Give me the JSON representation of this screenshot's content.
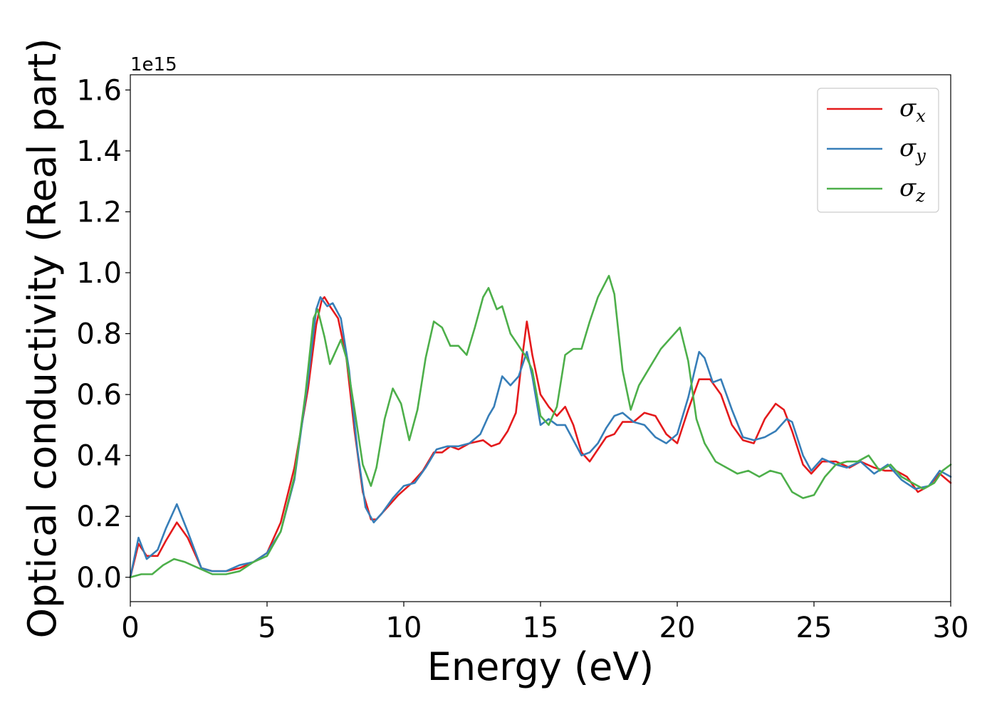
{
  "chart_data": {
    "type": "line",
    "xlabel": "Energy (eV)",
    "ylabel": "Optical conductivity (Real part)",
    "y_offset_label": "1e15",
    "xlim": [
      0,
      30
    ],
    "ylim": [
      -0.08,
      1.65
    ],
    "x_ticks": [
      "0",
      "5",
      "10",
      "15",
      "20",
      "25",
      "30"
    ],
    "y_ticks": [
      "0.0",
      "0.2",
      "0.4",
      "0.6",
      "0.8",
      "1.0",
      "1.2",
      "1.4",
      "1.6"
    ],
    "grid": false,
    "legend_position": "top-right",
    "series": [
      {
        "name": "σx",
        "symbol": "σ",
        "subscript": "x",
        "color": "#e41a1c",
        "points": [
          [
            0,
            0
          ],
          [
            0.3,
            0.11
          ],
          [
            0.6,
            0.07
          ],
          [
            1.0,
            0.07
          ],
          [
            1.3,
            0.12
          ],
          [
            1.7,
            0.18
          ],
          [
            2.1,
            0.13
          ],
          [
            2.6,
            0.03
          ],
          [
            3.0,
            0.02
          ],
          [
            3.5,
            0.02
          ],
          [
            4.0,
            0.03
          ],
          [
            4.5,
            0.05
          ],
          [
            5.0,
            0.08
          ],
          [
            5.5,
            0.18
          ],
          [
            6.0,
            0.36
          ],
          [
            6.5,
            0.62
          ],
          [
            6.8,
            0.83
          ],
          [
            7.0,
            0.91
          ],
          [
            7.1,
            0.92
          ],
          [
            7.3,
            0.89
          ],
          [
            7.6,
            0.85
          ],
          [
            7.9,
            0.72
          ],
          [
            8.2,
            0.48
          ],
          [
            8.5,
            0.28
          ],
          [
            8.8,
            0.19
          ],
          [
            9.0,
            0.19
          ],
          [
            9.4,
            0.23
          ],
          [
            9.8,
            0.27
          ],
          [
            10.3,
            0.31
          ],
          [
            10.7,
            0.35
          ],
          [
            11.1,
            0.41
          ],
          [
            11.4,
            0.41
          ],
          [
            11.7,
            0.43
          ],
          [
            12.0,
            0.42
          ],
          [
            12.4,
            0.44
          ],
          [
            12.9,
            0.45
          ],
          [
            13.2,
            0.43
          ],
          [
            13.5,
            0.44
          ],
          [
            13.8,
            0.48
          ],
          [
            14.1,
            0.54
          ],
          [
            14.3,
            0.7
          ],
          [
            14.5,
            0.84
          ],
          [
            14.7,
            0.73
          ],
          [
            15.0,
            0.6
          ],
          [
            15.3,
            0.56
          ],
          [
            15.6,
            0.53
          ],
          [
            15.9,
            0.56
          ],
          [
            16.2,
            0.5
          ],
          [
            16.5,
            0.41
          ],
          [
            16.8,
            0.38
          ],
          [
            17.1,
            0.42
          ],
          [
            17.4,
            0.46
          ],
          [
            17.7,
            0.47
          ],
          [
            18.0,
            0.51
          ],
          [
            18.4,
            0.51
          ],
          [
            18.8,
            0.54
          ],
          [
            19.2,
            0.53
          ],
          [
            19.6,
            0.47
          ],
          [
            20.0,
            0.44
          ],
          [
            20.4,
            0.55
          ],
          [
            20.8,
            0.65
          ],
          [
            21.2,
            0.65
          ],
          [
            21.6,
            0.6
          ],
          [
            22.0,
            0.5
          ],
          [
            22.4,
            0.45
          ],
          [
            22.8,
            0.44
          ],
          [
            23.2,
            0.52
          ],
          [
            23.6,
            0.57
          ],
          [
            23.9,
            0.55
          ],
          [
            24.2,
            0.48
          ],
          [
            24.6,
            0.37
          ],
          [
            24.9,
            0.34
          ],
          [
            25.3,
            0.38
          ],
          [
            25.8,
            0.38
          ],
          [
            26.3,
            0.36
          ],
          [
            26.7,
            0.38
          ],
          [
            27.2,
            0.36
          ],
          [
            27.6,
            0.35
          ],
          [
            28.0,
            0.35
          ],
          [
            28.4,
            0.33
          ],
          [
            28.8,
            0.28
          ],
          [
            29.2,
            0.3
          ],
          [
            29.6,
            0.34
          ],
          [
            30.0,
            0.31
          ]
        ]
      },
      {
        "name": "σy",
        "symbol": "σ",
        "subscript": "y",
        "color": "#377eb8",
        "points": [
          [
            0,
            0
          ],
          [
            0.3,
            0.13
          ],
          [
            0.6,
            0.06
          ],
          [
            1.0,
            0.09
          ],
          [
            1.3,
            0.16
          ],
          [
            1.7,
            0.24
          ],
          [
            2.1,
            0.15
          ],
          [
            2.6,
            0.03
          ],
          [
            3.0,
            0.02
          ],
          [
            3.5,
            0.02
          ],
          [
            4.0,
            0.04
          ],
          [
            4.5,
            0.05
          ],
          [
            5.0,
            0.08
          ],
          [
            5.5,
            0.15
          ],
          [
            6.0,
            0.32
          ],
          [
            6.5,
            0.65
          ],
          [
            6.8,
            0.88
          ],
          [
            6.95,
            0.92
          ],
          [
            7.2,
            0.89
          ],
          [
            7.4,
            0.9
          ],
          [
            7.7,
            0.85
          ],
          [
            8.0,
            0.68
          ],
          [
            8.3,
            0.42
          ],
          [
            8.6,
            0.23
          ],
          [
            8.9,
            0.18
          ],
          [
            9.2,
            0.21
          ],
          [
            9.6,
            0.26
          ],
          [
            10.0,
            0.3
          ],
          [
            10.4,
            0.31
          ],
          [
            10.8,
            0.36
          ],
          [
            11.2,
            0.42
          ],
          [
            11.6,
            0.43
          ],
          [
            12.0,
            0.43
          ],
          [
            12.4,
            0.44
          ],
          [
            12.8,
            0.47
          ],
          [
            13.1,
            0.53
          ],
          [
            13.3,
            0.56
          ],
          [
            13.6,
            0.66
          ],
          [
            13.9,
            0.63
          ],
          [
            14.2,
            0.66
          ],
          [
            14.5,
            0.74
          ],
          [
            14.7,
            0.66
          ],
          [
            15.0,
            0.5
          ],
          [
            15.3,
            0.52
          ],
          [
            15.6,
            0.5
          ],
          [
            15.9,
            0.5
          ],
          [
            16.2,
            0.45
          ],
          [
            16.5,
            0.4
          ],
          [
            16.8,
            0.41
          ],
          [
            17.1,
            0.44
          ],
          [
            17.4,
            0.49
          ],
          [
            17.7,
            0.53
          ],
          [
            18.0,
            0.54
          ],
          [
            18.4,
            0.51
          ],
          [
            18.8,
            0.5
          ],
          [
            19.2,
            0.46
          ],
          [
            19.6,
            0.44
          ],
          [
            20.0,
            0.47
          ],
          [
            20.4,
            0.59
          ],
          [
            20.8,
            0.74
          ],
          [
            21.0,
            0.72
          ],
          [
            21.3,
            0.64
          ],
          [
            21.6,
            0.65
          ],
          [
            22.0,
            0.55
          ],
          [
            22.4,
            0.46
          ],
          [
            22.8,
            0.45
          ],
          [
            23.2,
            0.46
          ],
          [
            23.6,
            0.48
          ],
          [
            24.0,
            0.52
          ],
          [
            24.2,
            0.51
          ],
          [
            24.6,
            0.4
          ],
          [
            24.9,
            0.35
          ],
          [
            25.3,
            0.39
          ],
          [
            25.8,
            0.37
          ],
          [
            26.2,
            0.36
          ],
          [
            26.7,
            0.38
          ],
          [
            27.2,
            0.34
          ],
          [
            27.7,
            0.37
          ],
          [
            28.2,
            0.32
          ],
          [
            28.7,
            0.29
          ],
          [
            29.2,
            0.3
          ],
          [
            29.6,
            0.35
          ],
          [
            30.0,
            0.33
          ]
        ]
      },
      {
        "name": "σz",
        "symbol": "σ",
        "subscript": "z",
        "color": "#4daf4a",
        "points": [
          [
            0,
            0
          ],
          [
            0.4,
            0.01
          ],
          [
            0.8,
            0.01
          ],
          [
            1.2,
            0.04
          ],
          [
            1.6,
            0.06
          ],
          [
            2.0,
            0.05
          ],
          [
            2.5,
            0.03
          ],
          [
            3.0,
            0.01
          ],
          [
            3.5,
            0.01
          ],
          [
            4.0,
            0.02
          ],
          [
            4.5,
            0.05
          ],
          [
            5.0,
            0.07
          ],
          [
            5.5,
            0.15
          ],
          [
            6.0,
            0.33
          ],
          [
            6.4,
            0.6
          ],
          [
            6.7,
            0.85
          ],
          [
            6.85,
            0.88
          ],
          [
            7.1,
            0.79
          ],
          [
            7.3,
            0.7
          ],
          [
            7.5,
            0.74
          ],
          [
            7.7,
            0.78
          ],
          [
            7.9,
            0.72
          ],
          [
            8.2,
            0.55
          ],
          [
            8.5,
            0.37
          ],
          [
            8.8,
            0.3
          ],
          [
            9.0,
            0.36
          ],
          [
            9.3,
            0.52
          ],
          [
            9.6,
            0.62
          ],
          [
            9.9,
            0.57
          ],
          [
            10.2,
            0.45
          ],
          [
            10.5,
            0.55
          ],
          [
            10.8,
            0.72
          ],
          [
            11.1,
            0.84
          ],
          [
            11.4,
            0.82
          ],
          [
            11.7,
            0.76
          ],
          [
            12.0,
            0.76
          ],
          [
            12.3,
            0.73
          ],
          [
            12.6,
            0.82
          ],
          [
            12.9,
            0.92
          ],
          [
            13.1,
            0.95
          ],
          [
            13.4,
            0.88
          ],
          [
            13.6,
            0.89
          ],
          [
            13.9,
            0.8
          ],
          [
            14.2,
            0.76
          ],
          [
            14.5,
            0.72
          ],
          [
            14.7,
            0.68
          ],
          [
            15.0,
            0.53
          ],
          [
            15.3,
            0.5
          ],
          [
            15.6,
            0.56
          ],
          [
            15.9,
            0.73
          ],
          [
            16.2,
            0.75
          ],
          [
            16.5,
            0.75
          ],
          [
            16.8,
            0.84
          ],
          [
            17.1,
            0.92
          ],
          [
            17.5,
            0.99
          ],
          [
            17.7,
            0.93
          ],
          [
            18.0,
            0.68
          ],
          [
            18.3,
            0.55
          ],
          [
            18.6,
            0.63
          ],
          [
            19.0,
            0.69
          ],
          [
            19.4,
            0.75
          ],
          [
            19.8,
            0.79
          ],
          [
            20.1,
            0.82
          ],
          [
            20.4,
            0.71
          ],
          [
            20.7,
            0.52
          ],
          [
            21.0,
            0.44
          ],
          [
            21.4,
            0.38
          ],
          [
            21.8,
            0.36
          ],
          [
            22.2,
            0.34
          ],
          [
            22.6,
            0.35
          ],
          [
            23.0,
            0.33
          ],
          [
            23.4,
            0.35
          ],
          [
            23.8,
            0.34
          ],
          [
            24.2,
            0.28
          ],
          [
            24.6,
            0.26
          ],
          [
            25.0,
            0.27
          ],
          [
            25.4,
            0.33
          ],
          [
            25.8,
            0.37
          ],
          [
            26.2,
            0.38
          ],
          [
            26.6,
            0.38
          ],
          [
            27.0,
            0.4
          ],
          [
            27.4,
            0.35
          ],
          [
            27.8,
            0.37
          ],
          [
            28.2,
            0.33
          ],
          [
            28.6,
            0.31
          ],
          [
            29.0,
            0.29
          ],
          [
            29.4,
            0.31
          ],
          [
            29.7,
            0.35
          ],
          [
            30.0,
            0.37
          ]
        ]
      }
    ]
  }
}
